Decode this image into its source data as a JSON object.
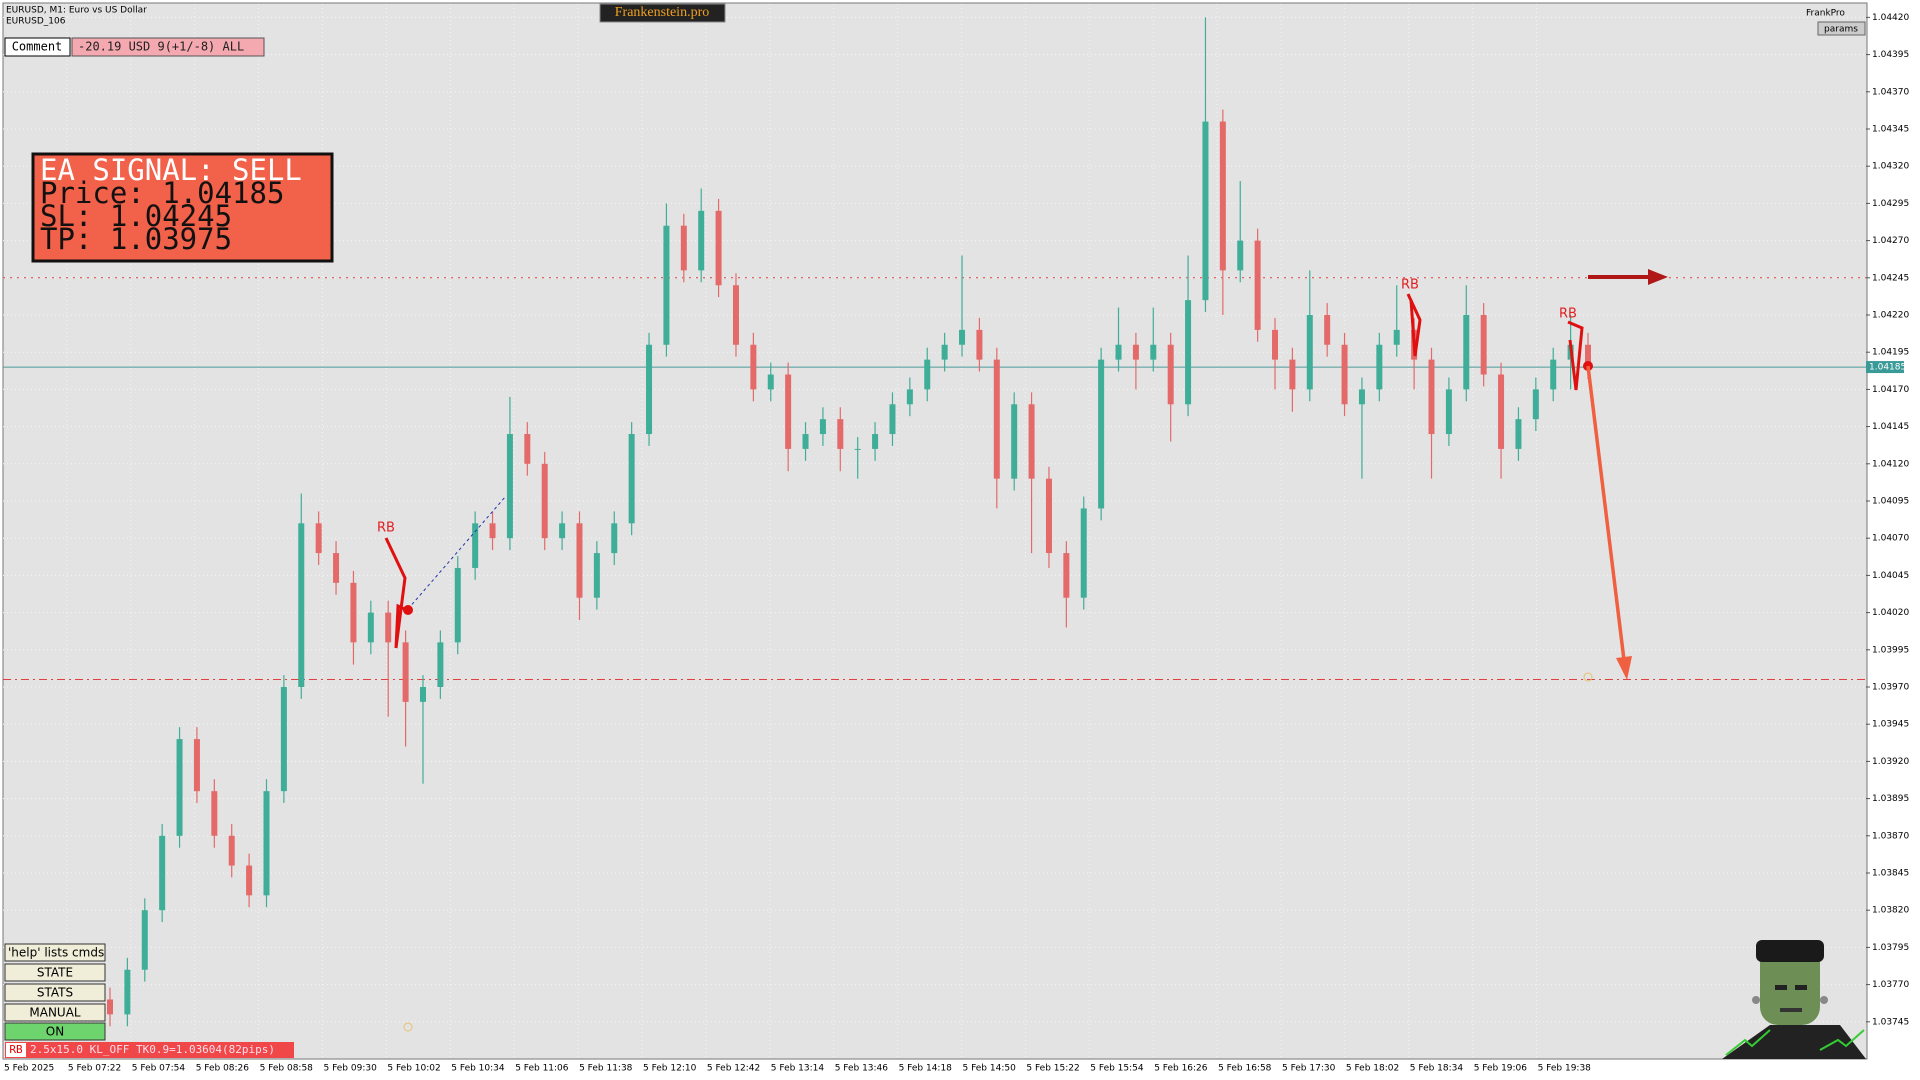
{
  "chart_data": {
    "type": "candlestick",
    "symbol": "EURUSD, M1:  Euro vs US Dollar",
    "account": "EURUSD_106",
    "up_color": "#3fae98",
    "down_color": "#e46a6a",
    "open": [
      1.0376,
      1.0375,
      1.0378,
      1.0382,
      1.0387,
      1.03935,
      1.039,
      1.0387,
      1.0385,
      1.0383,
      1.039,
      1.0397,
      1.0408,
      1.0406,
      1.0404,
      1.04,
      1.0402,
      1.04,
      1.0396,
      1.0397,
      1.04,
      1.0405,
      1.0408,
      1.0407,
      1.0414,
      1.0412,
      1.0407,
      1.0408,
      1.0403,
      1.0406,
      1.0408,
      1.0414,
      1.042,
      1.0428,
      1.0425,
      1.0429,
      1.0424,
      1.042,
      1.0417,
      1.0418,
      1.0413,
      1.0414,
      1.0415,
      1.0413,
      1.0413,
      1.0414,
      1.0416,
      1.0417,
      1.0419,
      1.042,
      1.0421,
      1.0419,
      1.0411,
      1.0416,
      1.0411,
      1.0406,
      1.0403,
      1.0409,
      1.0419,
      1.042,
      1.0419,
      1.042,
      1.0416,
      1.0423,
      1.0435,
      1.0425,
      1.0427,
      1.0421,
      1.0419,
      1.0417,
      1.0422,
      1.042,
      1.0416,
      1.0417,
      1.042,
      1.0421,
      1.0419,
      1.0414,
      1.0417,
      1.0422,
      1.0418,
      1.0413,
      1.0415,
      1.0417,
      1.0419,
      1.042
    ],
    "high": [
      1.03768,
      1.03788,
      1.03828,
      1.03878,
      1.03943,
      1.03943,
      1.03908,
      1.03878,
      1.03858,
      1.03908,
      1.03978,
      1.041,
      1.04088,
      1.04068,
      1.04048,
      1.04028,
      1.04028,
      1.04008,
      1.03978,
      1.04008,
      1.04058,
      1.04088,
      1.04088,
      1.04165,
      1.04148,
      1.04128,
      1.04088,
      1.04088,
      1.04068,
      1.04088,
      1.04148,
      1.04208,
      1.04295,
      1.04288,
      1.04305,
      1.04298,
      1.04248,
      1.04208,
      1.04188,
      1.04188,
      1.04148,
      1.04158,
      1.04158,
      1.04138,
      1.04148,
      1.04168,
      1.04178,
      1.04198,
      1.04208,
      1.0426,
      1.04218,
      1.04198,
      1.04168,
      1.04168,
      1.04118,
      1.04068,
      1.04098,
      1.04198,
      1.04225,
      1.04208,
      1.04225,
      1.04208,
      1.0426,
      1.0442,
      1.04358,
      1.0431,
      1.04278,
      1.04218,
      1.04198,
      1.0425,
      1.04228,
      1.04208,
      1.04178,
      1.04208,
      1.0424,
      1.04218,
      1.04198,
      1.04178,
      1.0424,
      1.04228,
      1.04188,
      1.04158,
      1.04178,
      1.04198,
      1.0422,
      1.04208
    ],
    "low": [
      1.03742,
      1.03742,
      1.03772,
      1.03812,
      1.03862,
      1.03892,
      1.03862,
      1.03842,
      1.03822,
      1.03822,
      1.03892,
      1.03962,
      1.04052,
      1.04032,
      1.03985,
      1.03992,
      1.0395,
      1.0393,
      1.03905,
      1.03962,
      1.03992,
      1.04042,
      1.04062,
      1.04062,
      1.04112,
      1.04062,
      1.04062,
      1.04015,
      1.04022,
      1.04052,
      1.04072,
      1.04132,
      1.04192,
      1.04242,
      1.04242,
      1.04232,
      1.04192,
      1.04162,
      1.04162,
      1.04115,
      1.04122,
      1.04132,
      1.04115,
      1.0411,
      1.04122,
      1.04132,
      1.04152,
      1.04162,
      1.04182,
      1.04192,
      1.04182,
      1.0409,
      1.04102,
      1.0406,
      1.0405,
      1.0401,
      1.04022,
      1.04082,
      1.04182,
      1.0417,
      1.04182,
      1.04135,
      1.04152,
      1.04222,
      1.0422,
      1.04242,
      1.04202,
      1.0417,
      1.04155,
      1.04162,
      1.04192,
      1.04152,
      1.0411,
      1.04162,
      1.04192,
      1.0417,
      1.0411,
      1.04132,
      1.04162,
      1.04172,
      1.0411,
      1.04122,
      1.04142,
      1.04162,
      1.0417,
      1.04177
    ],
    "close": [
      1.0375,
      1.0378,
      1.0382,
      1.0387,
      1.03935,
      1.039,
      1.0387,
      1.0385,
      1.0383,
      1.039,
      1.0397,
      1.0408,
      1.0406,
      1.0404,
      1.04,
      1.0402,
      1.04,
      1.0396,
      1.0397,
      1.04,
      1.0405,
      1.0408,
      1.0407,
      1.0414,
      1.0412,
      1.0407,
      1.0408,
      1.0403,
      1.0406,
      1.0408,
      1.0414,
      1.042,
      1.0428,
      1.0425,
      1.0429,
      1.0424,
      1.042,
      1.0417,
      1.0418,
      1.0413,
      1.0414,
      1.0415,
      1.0413,
      1.0413,
      1.0414,
      1.0416,
      1.0417,
      1.0419,
      1.042,
      1.0421,
      1.0419,
      1.0411,
      1.0416,
      1.0411,
      1.0406,
      1.0403,
      1.0409,
      1.0419,
      1.042,
      1.0419,
      1.042,
      1.0416,
      1.0423,
      1.0435,
      1.0425,
      1.0427,
      1.0421,
      1.0419,
      1.0417,
      1.0422,
      1.042,
      1.0416,
      1.0417,
      1.042,
      1.0421,
      1.0419,
      1.0414,
      1.0417,
      1.0422,
      1.0418,
      1.0413,
      1.0415,
      1.0417,
      1.0419,
      1.042,
      1.04185
    ],
    "ylim": [
      1.0372,
      1.04429
    ],
    "yticks": [
      {
        "value": 1.0442,
        "label": "1.04420"
      },
      1.04395,
      {
        "value": 1.0437,
        "label": "1.04370"
      },
      1.04345,
      {
        "value": 1.0432,
        "label": "1.04320"
      },
      1.04295,
      {
        "value": 1.0427,
        "label": "1.04270"
      },
      1.04245,
      {
        "value": 1.0422,
        "label": "1.04220"
      },
      1.04195,
      {
        "value": 1.0417,
        "label": "1.04170"
      },
      1.04145,
      {
        "value": 1.0412,
        "label": "1.04120"
      },
      1.04095,
      {
        "value": 1.0407,
        "label": "1.04070"
      },
      1.04045,
      {
        "value": 1.0402,
        "label": "1.04020"
      },
      1.03995,
      {
        "value": 1.0397,
        "label": "1.03970"
      },
      1.03945,
      {
        "value": 1.0392,
        "label": "1.03920"
      },
      1.03895,
      {
        "value": 1.0387,
        "label": "1.03870"
      },
      1.03845,
      {
        "value": 1.0382,
        "label": "1.03820"
      },
      1.03795,
      {
        "value": 1.0377,
        "label": "1.03770"
      },
      1.03745
    ],
    "xticks": [
      "5 Feb 2025",
      "5 Feb 07:22",
      "5 Feb 07:54",
      "5 Feb 08:26",
      "5 Feb 08:58",
      "5 Feb 09:30",
      "5 Feb 10:02",
      "5 Feb 10:34",
      "5 Feb 11:06",
      "5 Feb 11:38",
      "5 Feb 12:10",
      "5 Feb 12:42",
      "5 Feb 13:14",
      "5 Feb 13:46",
      "5 Feb 14:18",
      "5 Feb 14:50",
      "5 Feb 15:22",
      "5 Feb 15:54",
      "5 Feb 16:26",
      "5 Feb 16:58",
      "5 Feb 17:30",
      "5 Feb 18:02",
      "5 Feb 18:34",
      "5 Feb 19:06",
      "5 Feb 19:38"
    ],
    "bid": 1.04185,
    "sl": 1.04245,
    "tp": 1.03975,
    "grid": true,
    "annotations": [
      "RB",
      "RB",
      "RB"
    ]
  },
  "ui": {
    "brand": "Frankenstein.pro",
    "comment_button": "Comment",
    "comment_text": "-20.19 USD 9(+1/-8) ALL",
    "signal": [
      "EA SIGNAL: SELL",
      "Price: 1.04185",
      "SL:     1.04245",
      "TP:     1.03975"
    ],
    "profile": "FrankPro",
    "params": "params",
    "buttons": [
      "'help' lists cmds",
      "STATE",
      "STATS",
      "MANUAL",
      "ON"
    ],
    "status_tag": "RB",
    "status_text": "2.5x15.0 KL_OFF TK0.9=1.03604(82pips)"
  }
}
